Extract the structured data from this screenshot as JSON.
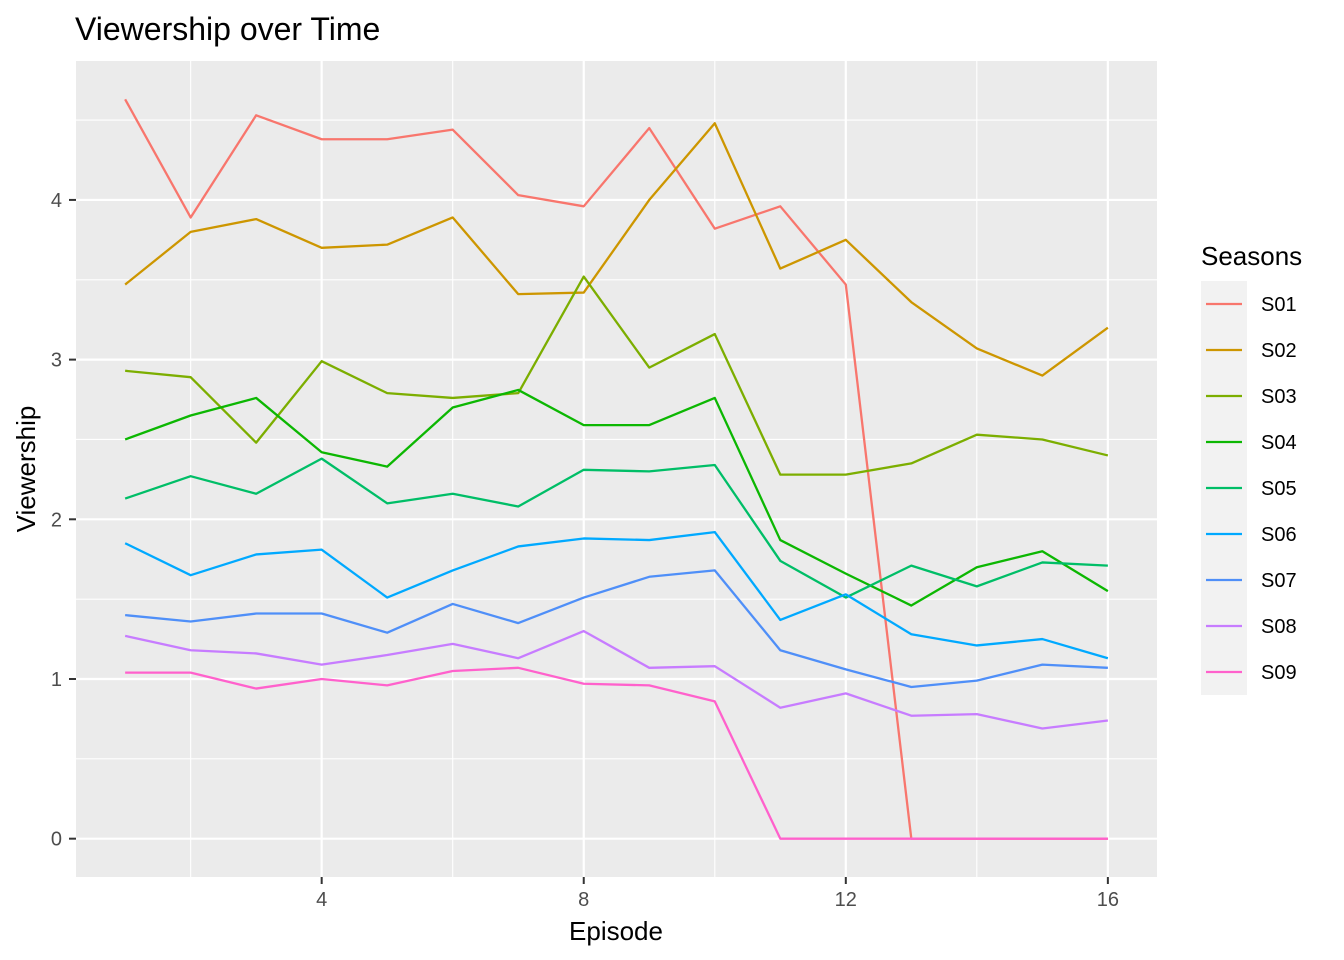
{
  "chart_data": {
    "type": "line",
    "title": "Viewership over Time",
    "xlabel": "Episode",
    "ylabel": "Viewership",
    "xlim": [
      0.25,
      16.75
    ],
    "ylim": [
      -0.24,
      4.87
    ],
    "x_ticks": [
      4,
      8,
      12,
      16
    ],
    "y_ticks": [
      0,
      1,
      2,
      3,
      4
    ],
    "grid": true,
    "legend_title": "Seasons",
    "legend_position": "right",
    "x": [
      1,
      2,
      3,
      4,
      5,
      6,
      7,
      8,
      9,
      10,
      11,
      12,
      13,
      14,
      15,
      16
    ],
    "series": [
      {
        "name": "S01",
        "color": "#F8766D",
        "values": [
          4.63,
          3.89,
          4.53,
          4.38,
          4.38,
          4.44,
          4.03,
          3.96,
          4.45,
          3.82,
          3.96,
          3.47,
          0,
          0,
          0,
          0
        ]
      },
      {
        "name": "S02",
        "color": "#CD9600",
        "values": [
          3.47,
          3.8,
          3.88,
          3.7,
          3.72,
          3.89,
          3.41,
          3.42,
          4.0,
          4.48,
          3.57,
          3.75,
          3.36,
          3.07,
          2.9,
          3.2
        ]
      },
      {
        "name": "S03",
        "color": "#7CAE00",
        "values": [
          2.93,
          2.89,
          2.48,
          2.99,
          2.79,
          2.76,
          2.79,
          3.52,
          2.95,
          3.16,
          2.28,
          2.28,
          2.35,
          2.53,
          2.5,
          2.4
        ]
      },
      {
        "name": "S04",
        "color": "#0CB702",
        "values": [
          2.5,
          2.65,
          2.76,
          2.42,
          2.33,
          2.7,
          2.81,
          2.59,
          2.59,
          2.76,
          1.87,
          1.66,
          1.46,
          1.7,
          1.8,
          1.55
        ]
      },
      {
        "name": "S05",
        "color": "#00BE67",
        "values": [
          2.13,
          2.27,
          2.16,
          2.38,
          2.1,
          2.16,
          2.08,
          2.31,
          2.3,
          2.34,
          1.74,
          1.51,
          1.71,
          1.58,
          1.73,
          1.71
        ]
      },
      {
        "name": "S06",
        "color": "#00A9FF",
        "values": [
          1.85,
          1.65,
          1.78,
          1.81,
          1.51,
          1.68,
          1.83,
          1.88,
          1.87,
          1.92,
          1.37,
          1.53,
          1.28,
          1.21,
          1.25,
          1.13
        ]
      },
      {
        "name": "S07",
        "color": "#4F8FF8",
        "values": [
          1.4,
          1.36,
          1.41,
          1.41,
          1.29,
          1.47,
          1.35,
          1.51,
          1.64,
          1.68,
          1.18,
          1.06,
          0.95,
          0.99,
          1.09,
          1.07
        ]
      },
      {
        "name": "S08",
        "color": "#C77CFF",
        "values": [
          1.27,
          1.18,
          1.16,
          1.09,
          1.15,
          1.22,
          1.13,
          1.3,
          1.07,
          1.08,
          0.82,
          0.91,
          0.77,
          0.78,
          0.69,
          0.74
        ]
      },
      {
        "name": "S09",
        "color": "#FF61CC",
        "values": [
          1.04,
          1.04,
          0.94,
          1.0,
          0.96,
          1.05,
          1.07,
          0.97,
          0.96,
          0.86,
          0,
          0,
          0,
          0,
          0,
          0
        ]
      }
    ]
  }
}
